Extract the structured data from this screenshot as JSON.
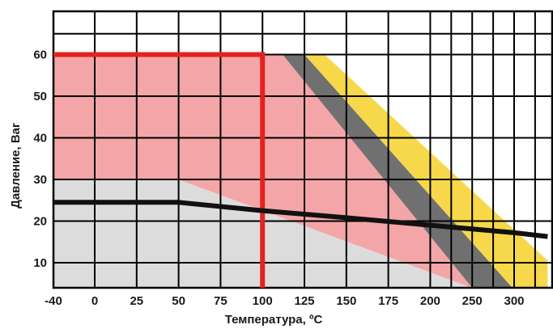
{
  "chart_data": {
    "type": "area",
    "xlabel": "Температура, ºС",
    "ylabel": "Давление, Bar",
    "x_ticks": [
      -40,
      0,
      25,
      50,
      75,
      100,
      125,
      150,
      175,
      200,
      250,
      300
    ],
    "x_tick_labels": [
      "-40",
      "0",
      "25",
      "50",
      "75",
      "100",
      "125",
      "150",
      "175",
      "200",
      "250",
      "300"
    ],
    "y_ticks": [
      10,
      20,
      30,
      40,
      50,
      60
    ],
    "y_tick_labels": [
      "10",
      "20",
      "30",
      "40",
      "50",
      "60"
    ],
    "grid": true,
    "colors": {
      "pink": "#f4a5a8",
      "gray": "#dcdcdc",
      "dark_gray": "#707070",
      "yellow": "#f6d84a",
      "red": "#e3221f",
      "black": "#111111",
      "grid": "#000000"
    }
  }
}
